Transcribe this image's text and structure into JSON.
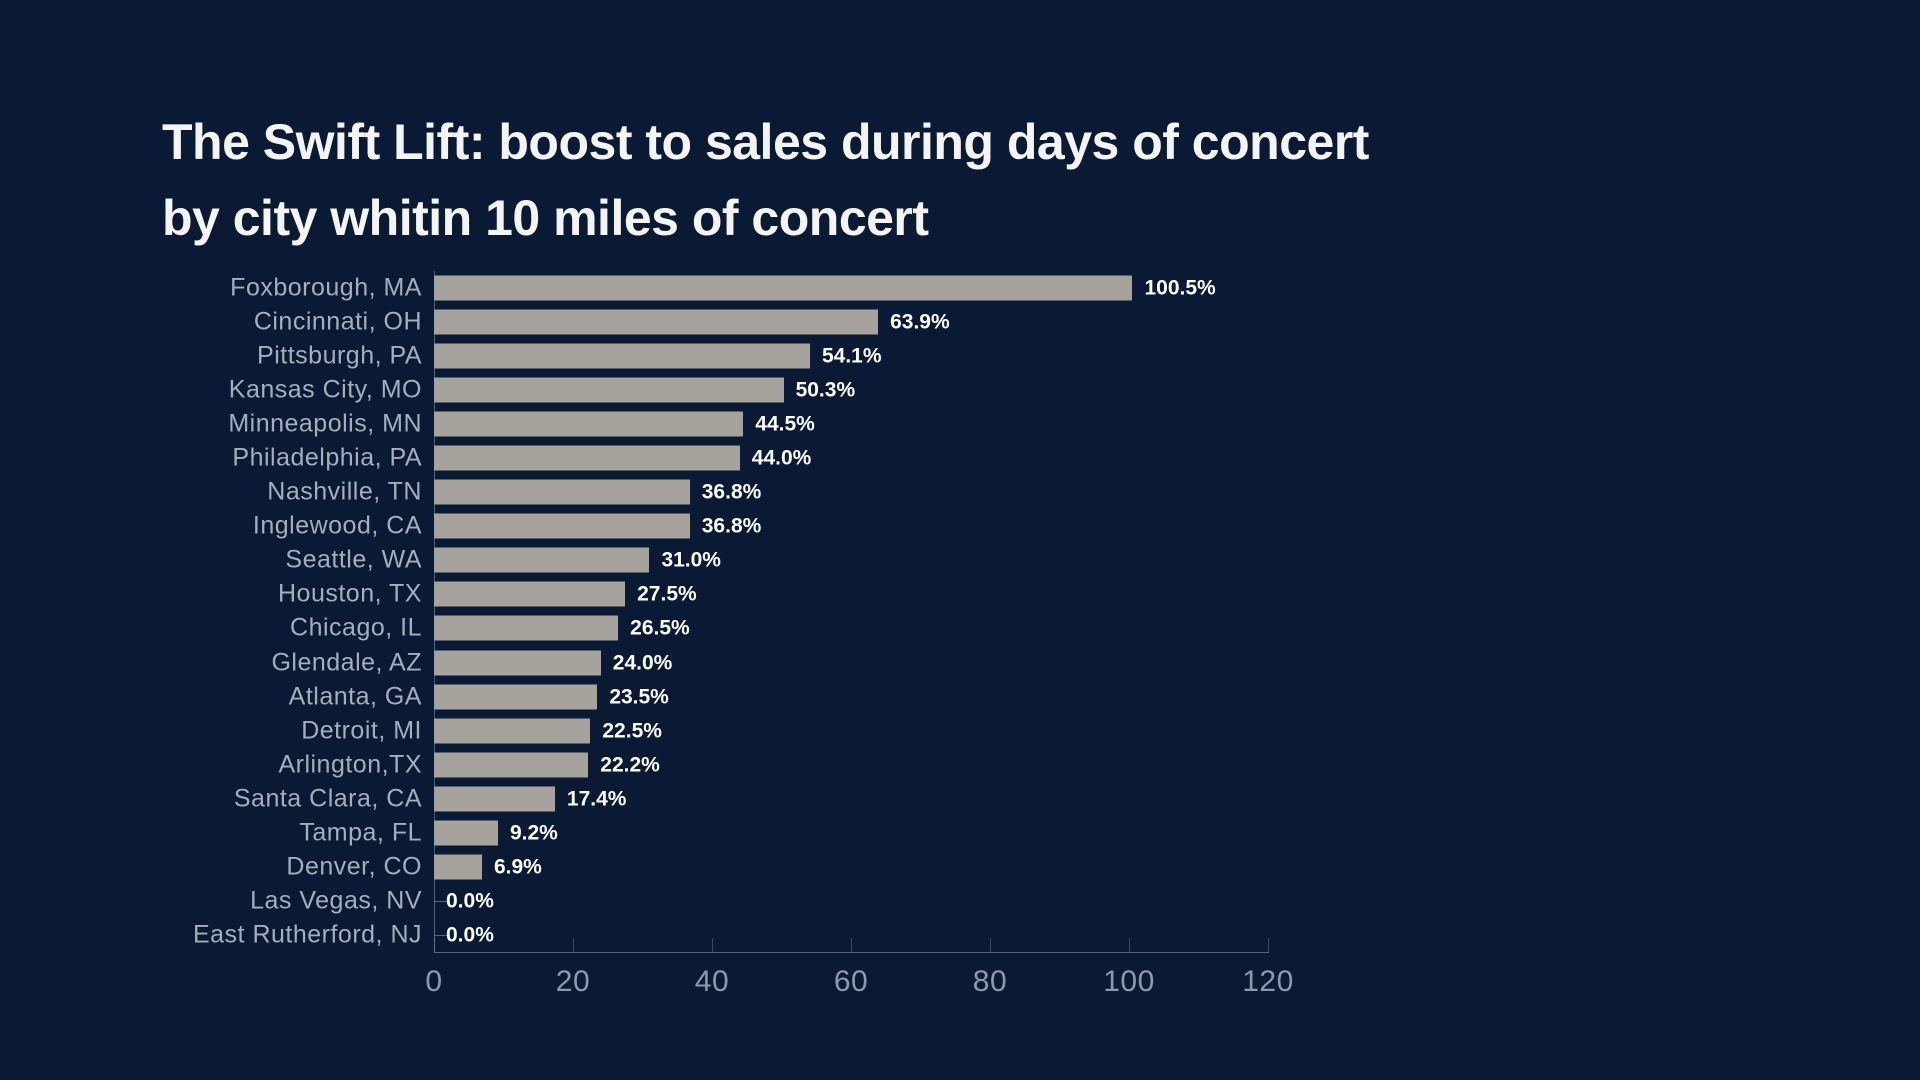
{
  "title": {
    "line1": "The Swift Lift: boost to sales during days of concert",
    "line2": "by city whitin 10 miles of concert"
  },
  "chart_data": {
    "type": "bar",
    "orientation": "horizontal",
    "title": "The Swift Lift: boost to sales during days of concert by city whitin 10 miles of concert",
    "categories": [
      "Foxborough, MA",
      "Cincinnati, OH",
      "Pittsburgh, PA",
      "Kansas City, MO",
      "Minneapolis, MN",
      "Philadelphia, PA",
      "Nashville, TN",
      "Inglewood, CA",
      "Seattle, WA",
      "Houston, TX",
      "Chicago, IL",
      "Glendale, AZ",
      "Atlanta, GA",
      "Detroit, MI",
      "Arlington,TX",
      "Santa Clara, CA",
      "Tampa, FL",
      "Denver, CO",
      "Las Vegas, NV",
      "East Rutherford, NJ"
    ],
    "values": [
      100.5,
      63.9,
      54.1,
      50.3,
      44.5,
      44.0,
      36.8,
      36.8,
      31.0,
      27.5,
      26.5,
      24.0,
      23.5,
      22.5,
      22.2,
      17.4,
      9.2,
      6.9,
      0.0,
      0.0
    ],
    "value_labels": [
      "100.5%",
      "63.9%",
      "54.1%",
      "50.3%",
      "44.5%",
      "44.0%",
      "36.8%",
      "36.8%",
      "31.0%",
      "27.5%",
      "26.5%",
      "24.0%",
      "23.5%",
      "22.5%",
      "22.2%",
      "17.4%",
      "9.2%",
      "6.9%",
      "0.0%",
      "0.0%"
    ],
    "xlabel": "",
    "ylabel": "",
    "xlim": [
      0,
      120
    ],
    "x_ticks": [
      0,
      20,
      40,
      60,
      80,
      100,
      120
    ],
    "grid": false,
    "legend": false
  },
  "colors": {
    "background": "#0a1a34",
    "bar": "#a5a39b",
    "title_text": "#f4f4f2",
    "category_label": "#a7aeb9",
    "value_label": "#ffffff",
    "axis": "#8f99a9"
  }
}
